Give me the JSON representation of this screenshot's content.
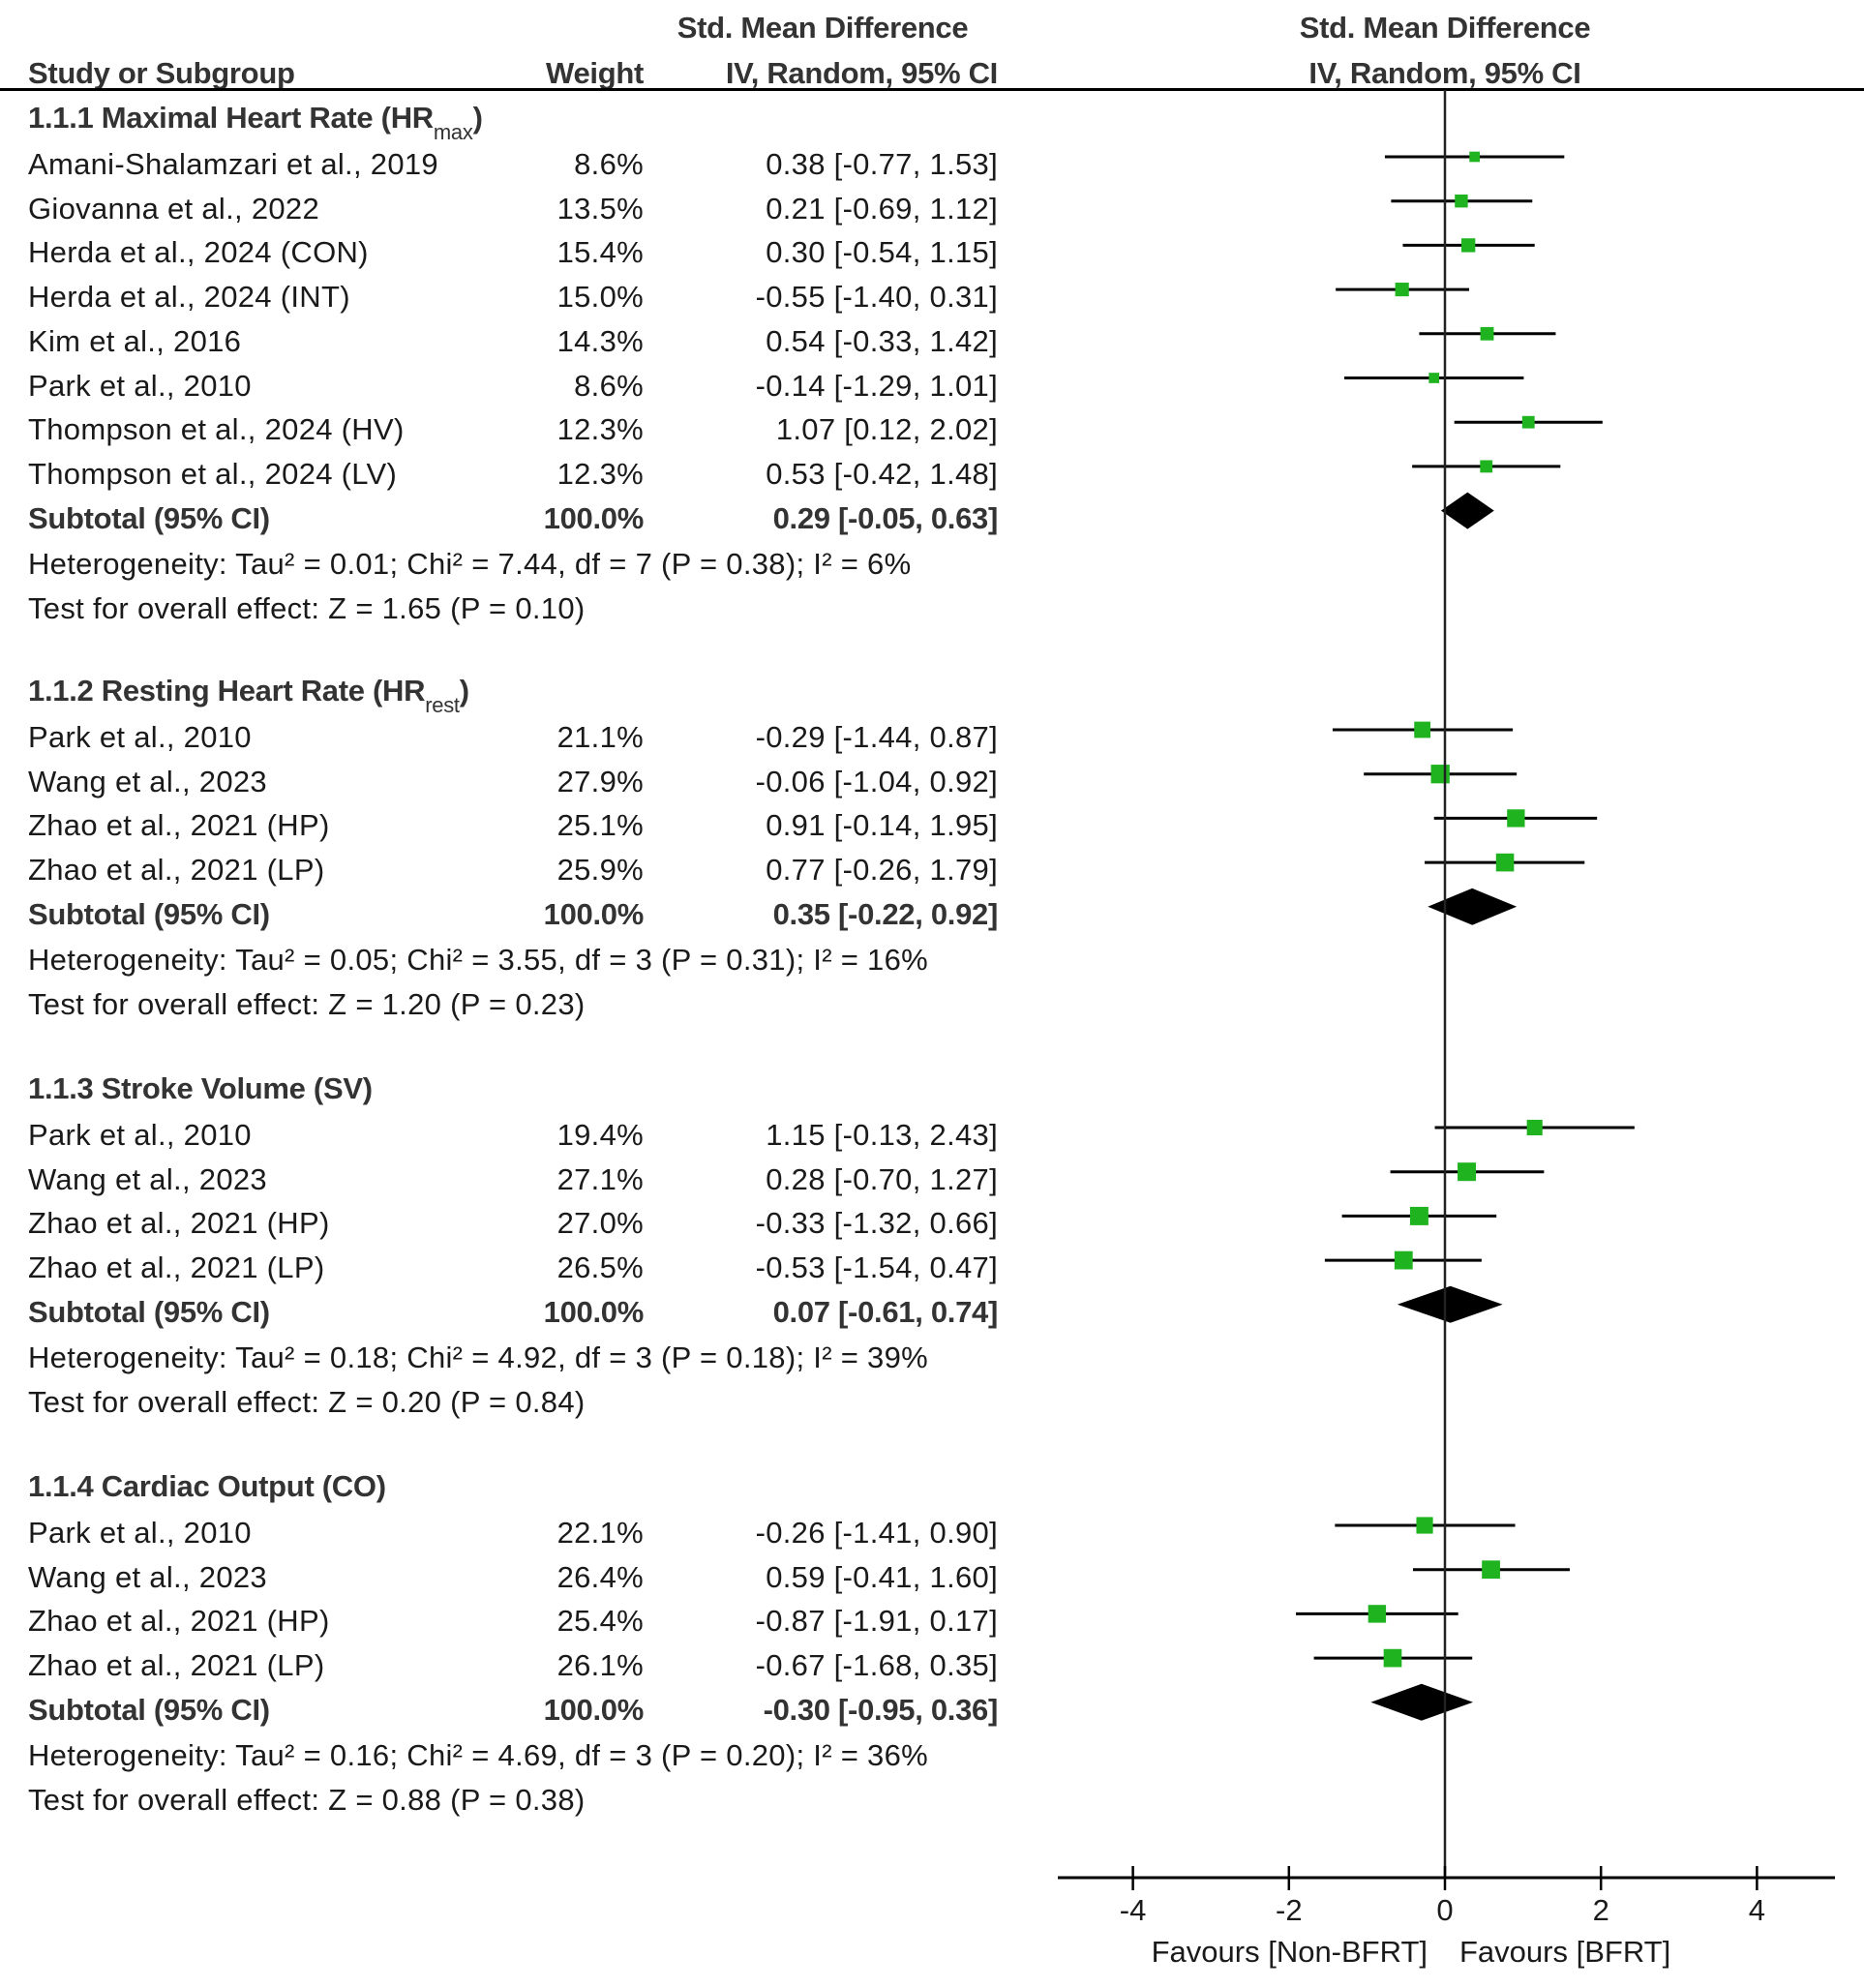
{
  "header": {
    "study_col": "Study or Subgroup",
    "weight_col": "Weight",
    "effect_title": "Std. Mean Difference",
    "effect_method": "IV, Random, 95% CI",
    "plot_title": "Std. Mean Difference",
    "plot_method": "IV, Random, 95% CI"
  },
  "colors": {
    "marker": "#1fb31f",
    "diamond": "#000000",
    "line": "#000000"
  },
  "chart_data": {
    "type": "forest",
    "title": "Std. Mean Difference, IV, Random, 95% CI",
    "xlim": [
      -5,
      5
    ],
    "xticks": [
      -4,
      -2,
      0,
      2,
      4
    ],
    "xtick_labels": [
      "-4",
      "-2",
      "0",
      "2",
      "4"
    ],
    "favours_left": "Favours [Non-BFRT]",
    "favours_right": "Favours [BFRT]",
    "groups": [
      {
        "title": "1.1.1 Maximal Heart Rate (HR",
        "title_sub": "max",
        "title_end": ")",
        "studies": [
          {
            "name": "Amani-Shalamzari et al., 2019",
            "weight": "8.6%",
            "w": 8.6,
            "smd": 0.38,
            "lo": -0.77,
            "hi": 1.53,
            "ci_text": "0.38 [-0.77, 1.53]"
          },
          {
            "name": "Giovanna et al., 2022",
            "weight": "13.5%",
            "w": 13.5,
            "smd": 0.21,
            "lo": -0.69,
            "hi": 1.12,
            "ci_text": "0.21 [-0.69, 1.12]"
          },
          {
            "name": "Herda et al., 2024 (CON)",
            "weight": "15.4%",
            "w": 15.4,
            "smd": 0.3,
            "lo": -0.54,
            "hi": 1.15,
            "ci_text": "0.30 [-0.54, 1.15]"
          },
          {
            "name": "Herda et al., 2024 (INT)",
            "weight": "15.0%",
            "w": 15.0,
            "smd": -0.55,
            "lo": -1.4,
            "hi": 0.31,
            "ci_text": "-0.55 [-1.40, 0.31]"
          },
          {
            "name": "Kim et al., 2016",
            "weight": "14.3%",
            "w": 14.3,
            "smd": 0.54,
            "lo": -0.33,
            "hi": 1.42,
            "ci_text": "0.54 [-0.33, 1.42]"
          },
          {
            "name": "Park et al., 2010",
            "weight": "8.6%",
            "w": 8.6,
            "smd": -0.14,
            "lo": -1.29,
            "hi": 1.01,
            "ci_text": "-0.14 [-1.29, 1.01]"
          },
          {
            "name": "Thompson et al., 2024 (HV)",
            "weight": "12.3%",
            "w": 12.3,
            "smd": 1.07,
            "lo": 0.12,
            "hi": 2.02,
            "ci_text": "1.07 [0.12, 2.02]"
          },
          {
            "name": "Thompson et al., 2024 (LV)",
            "weight": "12.3%",
            "w": 12.3,
            "smd": 0.53,
            "lo": -0.42,
            "hi": 1.48,
            "ci_text": "0.53 [-0.42, 1.48]"
          }
        ],
        "subtotal": {
          "label": "Subtotal (95% CI)",
          "weight": "100.0%",
          "smd": 0.29,
          "lo": -0.05,
          "hi": 0.63,
          "ci_text": "0.29 [-0.05, 0.63]"
        },
        "heterogeneity": "Heterogeneity: Tau² = 0.01; Chi² = 7.44, df = 7 (P = 0.38); I² = 6%",
        "overall": "Test for overall effect: Z = 1.65 (P = 0.10)"
      },
      {
        "title": "1.1.2 Resting Heart Rate (HR",
        "title_sub": "rest",
        "title_end": ")",
        "studies": [
          {
            "name": "Park et al., 2010",
            "weight": "21.1%",
            "w": 21.1,
            "smd": -0.29,
            "lo": -1.44,
            "hi": 0.87,
            "ci_text": "-0.29 [-1.44, 0.87]"
          },
          {
            "name": "Wang et al., 2023",
            "weight": "27.9%",
            "w": 27.9,
            "smd": -0.06,
            "lo": -1.04,
            "hi": 0.92,
            "ci_text": "-0.06 [-1.04, 0.92]"
          },
          {
            "name": "Zhao et al., 2021 (HP)",
            "weight": "25.1%",
            "w": 25.1,
            "smd": 0.91,
            "lo": -0.14,
            "hi": 1.95,
            "ci_text": "0.91 [-0.14, 1.95]"
          },
          {
            "name": "Zhao et al., 2021 (LP)",
            "weight": "25.9%",
            "w": 25.9,
            "smd": 0.77,
            "lo": -0.26,
            "hi": 1.79,
            "ci_text": "0.77 [-0.26, 1.79]"
          }
        ],
        "subtotal": {
          "label": "Subtotal (95% CI)",
          "weight": "100.0%",
          "smd": 0.35,
          "lo": -0.22,
          "hi": 0.92,
          "ci_text": "0.35 [-0.22, 0.92]"
        },
        "heterogeneity": "Heterogeneity: Tau² = 0.05; Chi² = 3.55, df = 3 (P = 0.31); I² = 16%",
        "overall": "Test for overall effect: Z = 1.20 (P = 0.23)"
      },
      {
        "title": "1.1.3 Stroke Volume (SV)",
        "title_sub": "",
        "title_end": "",
        "studies": [
          {
            "name": "Park et al., 2010",
            "weight": "19.4%",
            "w": 19.4,
            "smd": 1.15,
            "lo": -0.13,
            "hi": 2.43,
            "ci_text": "1.15 [-0.13, 2.43]"
          },
          {
            "name": "Wang et al., 2023",
            "weight": "27.1%",
            "w": 27.1,
            "smd": 0.28,
            "lo": -0.7,
            "hi": 1.27,
            "ci_text": "0.28 [-0.70, 1.27]"
          },
          {
            "name": "Zhao et al., 2021 (HP)",
            "weight": "27.0%",
            "w": 27.0,
            "smd": -0.33,
            "lo": -1.32,
            "hi": 0.66,
            "ci_text": "-0.33 [-1.32, 0.66]"
          },
          {
            "name": "Zhao et al., 2021 (LP)",
            "weight": "26.5%",
            "w": 26.5,
            "smd": -0.53,
            "lo": -1.54,
            "hi": 0.47,
            "ci_text": "-0.53 [-1.54, 0.47]"
          }
        ],
        "subtotal": {
          "label": "Subtotal (95% CI)",
          "weight": "100.0%",
          "smd": 0.07,
          "lo": -0.61,
          "hi": 0.74,
          "ci_text": "0.07 [-0.61, 0.74]"
        },
        "heterogeneity": "Heterogeneity: Tau² = 0.18; Chi² = 4.92, df = 3 (P = 0.18); I² = 39%",
        "overall": "Test for overall effect: Z = 0.20 (P = 0.84)"
      },
      {
        "title": "1.1.4 Cardiac Output (CO)",
        "title_sub": "",
        "title_end": "",
        "studies": [
          {
            "name": "Park et al., 2010",
            "weight": "22.1%",
            "w": 22.1,
            "smd": -0.26,
            "lo": -1.41,
            "hi": 0.9,
            "ci_text": "-0.26 [-1.41, 0.90]"
          },
          {
            "name": "Wang et al., 2023",
            "weight": "26.4%",
            "w": 26.4,
            "smd": 0.59,
            "lo": -0.41,
            "hi": 1.6,
            "ci_text": "0.59 [-0.41, 1.60]"
          },
          {
            "name": "Zhao et al., 2021 (HP)",
            "weight": "25.4%",
            "w": 25.4,
            "smd": -0.87,
            "lo": -1.91,
            "hi": 0.17,
            "ci_text": "-0.87 [-1.91, 0.17]"
          },
          {
            "name": "Zhao et al., 2021 (LP)",
            "weight": "26.1%",
            "w": 26.1,
            "smd": -0.67,
            "lo": -1.68,
            "hi": 0.35,
            "ci_text": "-0.67 [-1.68, 0.35]"
          }
        ],
        "subtotal": {
          "label": "Subtotal (95% CI)",
          "weight": "100.0%",
          "smd": -0.3,
          "lo": -0.95,
          "hi": 0.36,
          "ci_text": "-0.30 [-0.95, 0.36]"
        },
        "heterogeneity": "Heterogeneity: Tau² = 0.16; Chi² = 4.69, df = 3 (P = 0.20); I² = 36%",
        "overall": "Test for overall effect: Z = 0.88 (P = 0.38)"
      }
    ]
  }
}
